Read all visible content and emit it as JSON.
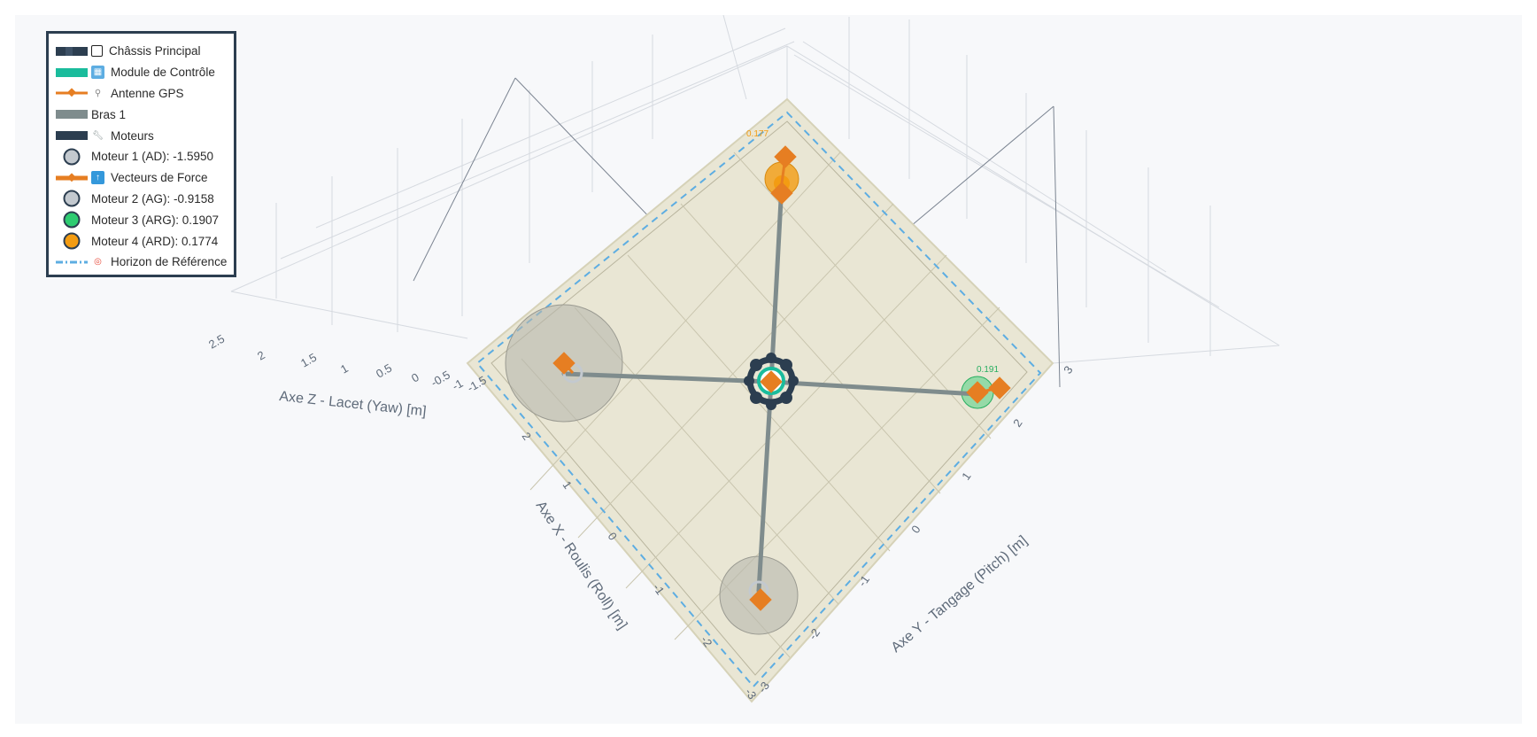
{
  "chart_data": {
    "type": "scatter3d",
    "scene": {
      "x_axis": {
        "title": "Axe X - Roulis (Roll) [m]",
        "ticks": [
          "2",
          "1",
          "0",
          "-1",
          "-2",
          "-3"
        ]
      },
      "y_axis": {
        "title": "Axe Y - Tangage (Pitch) [m]",
        "ticks": [
          "-3",
          "-2",
          "-1",
          "0",
          "1",
          "2",
          "3"
        ]
      },
      "z_axis": {
        "title": "Axe Z - Lacet (Yaw) [m]",
        "ticks": [
          "2.5",
          "2",
          "1.5",
          "1",
          "0.5",
          "0",
          "-0.5",
          "-1",
          "-1.5"
        ]
      }
    },
    "legend": [
      {
        "label": "Châssis Principal",
        "color": "#2c3e50",
        "symbol": "thick-line",
        "glyph": "square-icon"
      },
      {
        "label": "Module de Contrôle",
        "color": "#1abc9c",
        "symbol": "thick-line",
        "glyph": "chip-icon"
      },
      {
        "label": "Antenne GPS",
        "color": "#e67e22",
        "symbol": "line-marker",
        "glyph": "satellite-icon"
      },
      {
        "label": "Bras 1",
        "color": "#7f8c8d",
        "symbol": "thick-line",
        "glyph": ""
      },
      {
        "label": "Moteurs",
        "color": "#2c3e50",
        "symbol": "thick-line",
        "glyph": "wrench-icon"
      },
      {
        "label": "Moteur 1 (AD): -1.5950",
        "color": "#c3c9cf",
        "symbol": "circle",
        "glyph": ""
      },
      {
        "label": "Vecteurs de Force",
        "color": "#e67e22",
        "symbol": "line-marker",
        "glyph": "arrow-up-icon"
      },
      {
        "label": "Moteur 2 (AG): -0.9158",
        "color": "#c3c9cf",
        "symbol": "circle",
        "glyph": ""
      },
      {
        "label": "Moteur 3 (ARG): 0.1907",
        "color": "#2ecc71",
        "symbol": "circle",
        "glyph": ""
      },
      {
        "label": "Moteur 4 (ARD): 0.1774",
        "color": "#f39c12",
        "symbol": "circle",
        "glyph": ""
      },
      {
        "label": "Horizon de Référence",
        "color": "#5dade2",
        "symbol": "dash-line",
        "glyph": "target-icon"
      }
    ],
    "motors": [
      {
        "name": "Moteur 1 (AD)",
        "value": -1.595,
        "color": "#c3c9cf"
      },
      {
        "name": "Moteur 2 (AG)",
        "value": -0.9158,
        "color": "#c3c9cf"
      },
      {
        "name": "Moteur 3 (ARG)",
        "value": 0.1907,
        "color": "#2ecc71",
        "label": "0.191"
      },
      {
        "name": "Moteur 4 (ARD)",
        "value": 0.1774,
        "color": "#f39c12",
        "label": "0.177"
      }
    ],
    "colors": {
      "plane": "#e9e6d4",
      "horizon": "#5dade2",
      "arm": "#7f8c8d",
      "chassis": "#2c3e50",
      "control": "#1abc9c",
      "force": "#e67e22"
    }
  }
}
